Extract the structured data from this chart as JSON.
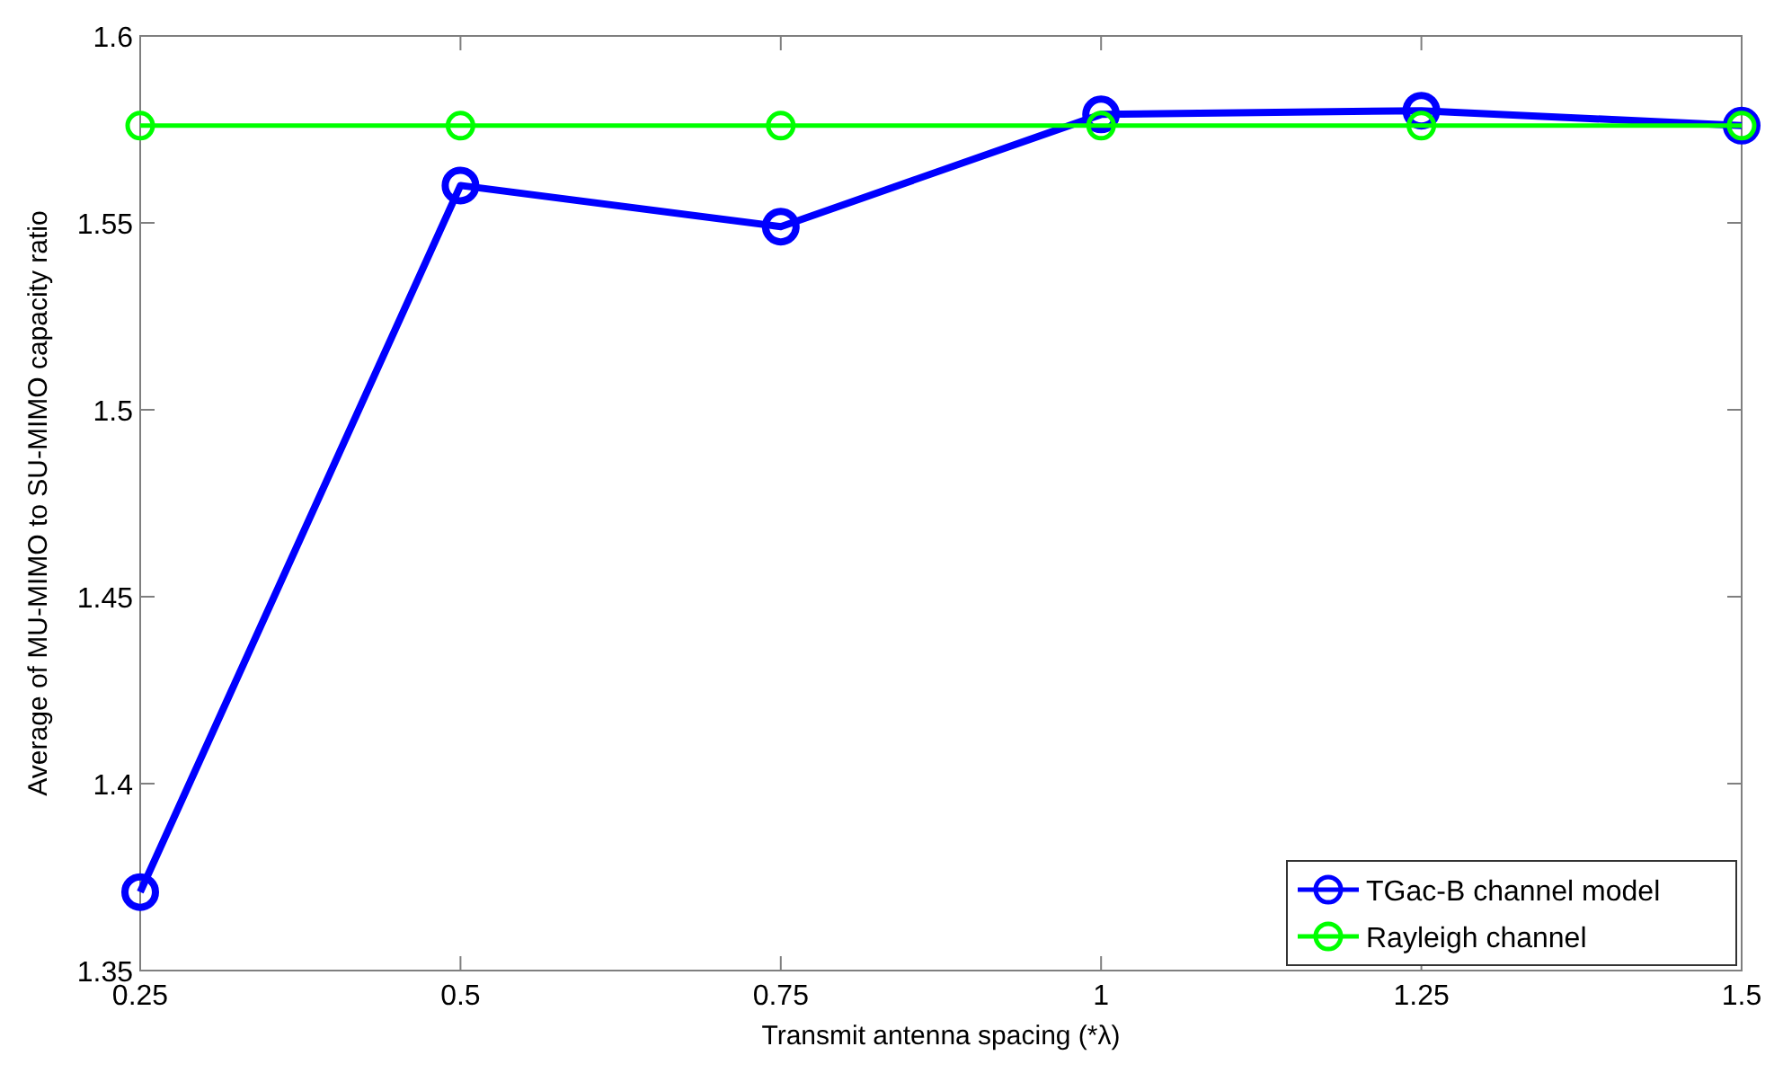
{
  "chart_data": {
    "type": "line",
    "xlabel": "Transmit antenna spacing (*λ)",
    "ylabel": "Average of MU-MIMO to SU-MIMO capacity ratio",
    "x": [
      0.25,
      0.5,
      0.75,
      1,
      1.25,
      1.5
    ],
    "series": [
      {
        "name": "TGac-B channel model",
        "color": "#0000ff",
        "values": [
          1.371,
          1.56,
          1.549,
          1.579,
          1.58,
          1.576
        ]
      },
      {
        "name": "Rayleigh channel",
        "color": "#00ff00",
        "values": [
          1.576,
          1.576,
          1.576,
          1.576,
          1.576,
          1.576
        ]
      }
    ],
    "xlim": [
      0.25,
      1.5
    ],
    "xticks": [
      0.25,
      0.5,
      0.75,
      1,
      1.25,
      1.5
    ],
    "ylim": [
      1.35,
      1.6
    ],
    "yticks": [
      1.35,
      1.4,
      1.45,
      1.5,
      1.55,
      1.6
    ],
    "grid": false,
    "legend": "bottom right",
    "marker": "circle",
    "line_style": "solid"
  }
}
